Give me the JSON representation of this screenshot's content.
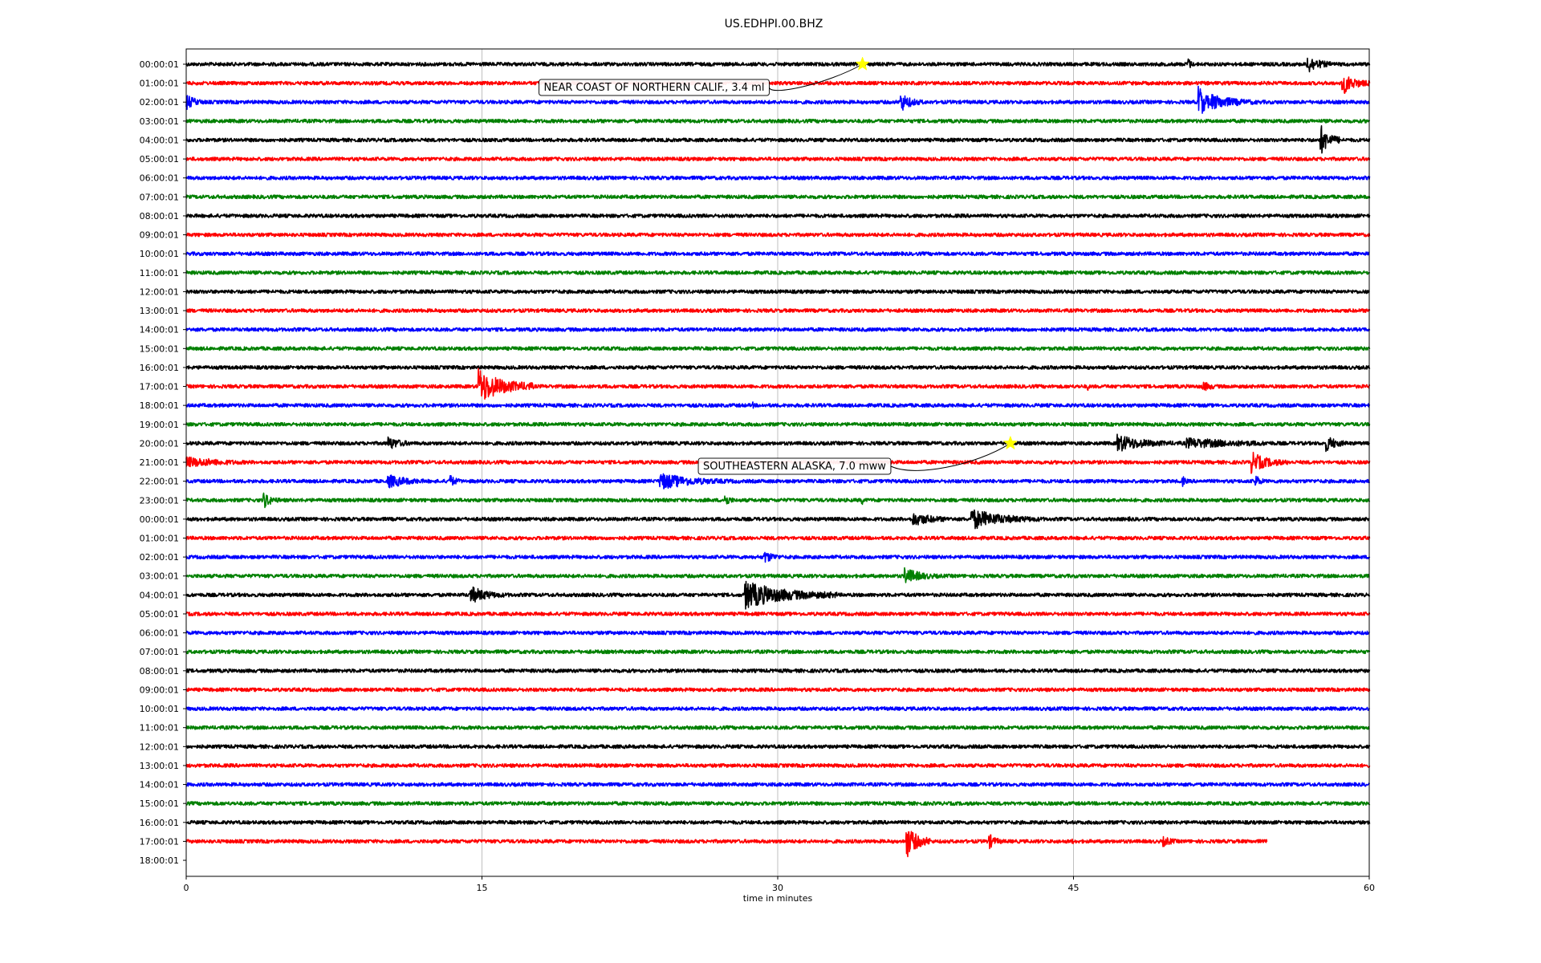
{
  "chart_data": {
    "type": "line",
    "title": "US.EDHPI.00.BHZ",
    "xlabel": "time in minutes",
    "xlim": [
      0,
      60
    ],
    "xticks": [
      0,
      15,
      30,
      45,
      60
    ],
    "grid_x": true,
    "trace_colors": [
      "#000000",
      "#ff0000",
      "#0000ff",
      "#008000"
    ],
    "row_labels": [
      "00:00:01",
      "01:00:01",
      "02:00:01",
      "03:00:01",
      "04:00:01",
      "05:00:01",
      "06:00:01",
      "07:00:01",
      "08:00:01",
      "09:00:01",
      "10:00:01",
      "11:00:01",
      "12:00:01",
      "13:00:01",
      "14:00:01",
      "15:00:01",
      "16:00:01",
      "17:00:01",
      "18:00:01",
      "19:00:01",
      "20:00:01",
      "21:00:01",
      "22:00:01",
      "23:00:01",
      "00:00:01",
      "01:00:01",
      "02:00:01",
      "03:00:01",
      "04:00:01",
      "05:00:01",
      "06:00:01",
      "07:00:01",
      "08:00:01",
      "09:00:01",
      "10:00:01",
      "11:00:01",
      "12:00:01",
      "13:00:01",
      "14:00:01",
      "15:00:01",
      "16:00:01",
      "17:00:01",
      "18:00:01"
    ],
    "trace_end_minutes": {
      "41": 54.8
    },
    "bursts": [
      {
        "row": 0,
        "minute": 50.8,
        "duration": 0.3,
        "amplitude": 0.5
      },
      {
        "row": 0,
        "minute": 56.8,
        "duration": 1.4,
        "amplitude": 0.6
      },
      {
        "row": 1,
        "minute": 58.6,
        "duration": 1.4,
        "amplitude": 0.7
      },
      {
        "row": 2,
        "minute": 0.0,
        "duration": 1.2,
        "amplitude": 0.45
      },
      {
        "row": 2,
        "minute": 36.2,
        "duration": 1.2,
        "amplitude": 0.6
      },
      {
        "row": 2,
        "minute": 51.3,
        "duration": 0.8,
        "amplitude": 1.2
      },
      {
        "row": 2,
        "minute": 52.0,
        "duration": 3.2,
        "amplitude": 0.45
      },
      {
        "row": 4,
        "minute": 57.5,
        "duration": 1.0,
        "amplitude": 0.9
      },
      {
        "row": 17,
        "minute": 14.8,
        "duration": 2.8,
        "amplitude": 1.0
      },
      {
        "row": 17,
        "minute": 45.7,
        "duration": 0.2,
        "amplitude": 0.25
      },
      {
        "row": 17,
        "minute": 51.5,
        "duration": 1.5,
        "amplitude": 0.3
      },
      {
        "row": 18,
        "minute": 28.7,
        "duration": 0.3,
        "amplitude": 0.25
      },
      {
        "row": 19,
        "minute": 10.8,
        "duration": 0.2,
        "amplitude": 0.2
      },
      {
        "row": 20,
        "minute": 10.2,
        "duration": 1.8,
        "amplitude": 0.4
      },
      {
        "row": 20,
        "minute": 47.2,
        "duration": 3.5,
        "amplitude": 0.5
      },
      {
        "row": 20,
        "minute": 50.7,
        "duration": 9.3,
        "amplitude": 0.3
      },
      {
        "row": 20,
        "minute": 57.8,
        "duration": 1.5,
        "amplitude": 0.45
      },
      {
        "row": 21,
        "minute": 0.0,
        "duration": 6.0,
        "amplitude": 0.3
      },
      {
        "row": 21,
        "minute": 54.0,
        "duration": 2.0,
        "amplitude": 0.6
      },
      {
        "row": 22,
        "minute": 10.2,
        "duration": 2.8,
        "amplitude": 0.4
      },
      {
        "row": 22,
        "minute": 13.3,
        "duration": 0.8,
        "amplitude": 0.45
      },
      {
        "row": 22,
        "minute": 24.0,
        "duration": 4.2,
        "amplitude": 0.5
      },
      {
        "row": 22,
        "minute": 50.5,
        "duration": 0.6,
        "amplitude": 0.3
      },
      {
        "row": 22,
        "minute": 54.2,
        "duration": 0.6,
        "amplitude": 0.45
      },
      {
        "row": 23,
        "minute": 3.9,
        "duration": 1.0,
        "amplitude": 0.5
      },
      {
        "row": 23,
        "minute": 27.3,
        "duration": 0.6,
        "amplitude": 0.45
      },
      {
        "row": 23,
        "minute": 34.2,
        "duration": 0.3,
        "amplitude": 0.4
      },
      {
        "row": 24,
        "minute": 36.8,
        "duration": 3.0,
        "amplitude": 0.4
      },
      {
        "row": 24,
        "minute": 39.8,
        "duration": 3.7,
        "amplitude": 0.6
      },
      {
        "row": 24,
        "minute": 47.8,
        "duration": 0.3,
        "amplitude": 0.2
      },
      {
        "row": 26,
        "minute": 29.3,
        "duration": 1.5,
        "amplitude": 0.35
      },
      {
        "row": 27,
        "minute": 36.4,
        "duration": 2.1,
        "amplitude": 0.5
      },
      {
        "row": 28,
        "minute": 14.4,
        "duration": 2.2,
        "amplitude": 0.5
      },
      {
        "row": 28,
        "minute": 28.3,
        "duration": 4.7,
        "amplitude": 0.8
      },
      {
        "row": 41,
        "minute": 36.5,
        "duration": 1.2,
        "amplitude": 1.0
      },
      {
        "row": 41,
        "minute": 40.7,
        "duration": 0.9,
        "amplitude": 0.45
      },
      {
        "row": 41,
        "minute": 44.9,
        "duration": 0.2,
        "amplitude": 0.3
      },
      {
        "row": 41,
        "minute": 49.5,
        "duration": 1.5,
        "amplitude": 0.3
      }
    ],
    "events": [
      {
        "label": "NEAR COAST OF NORTHERN CALIF., 3.4 ml",
        "row": 0,
        "minute": 34.3
      },
      {
        "label": "SOUTHEASTERN ALASKA, 7.0 mww",
        "row": 20,
        "minute": 41.8
      }
    ]
  }
}
